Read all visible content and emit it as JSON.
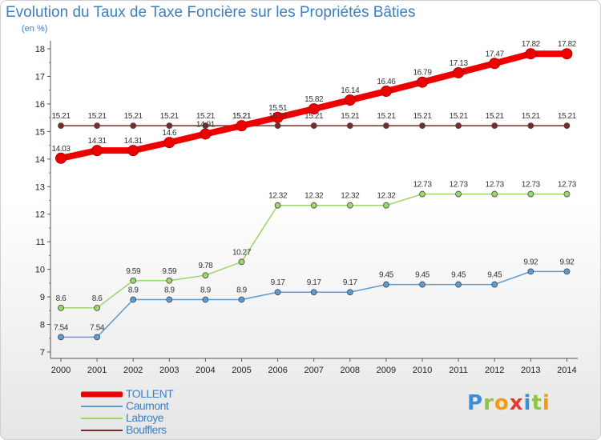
{
  "title": "Evolution du Taux de Taxe Foncière sur les Propriétés Bâties",
  "subtitle": "(en %)",
  "logo": {
    "text": "Proxiti",
    "letters": [
      {
        "ch": "P",
        "color": "#3a8fd6"
      },
      {
        "ch": "r",
        "color": "#8dc63f"
      },
      {
        "ch": "o",
        "color": "#f39c12"
      },
      {
        "ch": "x",
        "color": "#e23b2e"
      },
      {
        "ch": "i",
        "color": "#3a8fd6"
      },
      {
        "ch": "t",
        "color": "#8dc63f"
      },
      {
        "ch": "i",
        "color": "#f39c12"
      }
    ]
  },
  "chart_data": {
    "type": "line",
    "title": "Evolution du Taux de Taxe Foncière sur les Propriétés Bâties",
    "ylabel": "(en %)",
    "xlabel": "",
    "categories": [
      "2000",
      "2001",
      "2002",
      "2003",
      "2004",
      "2005",
      "2006",
      "2007",
      "2008",
      "2009",
      "2010",
      "2011",
      "2012",
      "2013",
      "2014"
    ],
    "ylim": [
      7,
      18
    ],
    "yticks": [
      7,
      8,
      9,
      10,
      11,
      12,
      13,
      14,
      15,
      16,
      17,
      18
    ],
    "grid": false,
    "legend_position": "bottom-left",
    "series": [
      {
        "name": "Boufflers",
        "color": "#7a2a2a",
        "values": [
          15.21,
          15.21,
          15.21,
          15.21,
          15.21,
          15.21,
          15.21,
          15.21,
          15.21,
          15.21,
          15.21,
          15.21,
          15.21,
          15.21,
          15.21
        ]
      },
      {
        "name": "Caumont",
        "color": "#5d9bd3",
        "values": [
          7.54,
          7.54,
          8.9,
          8.9,
          8.9,
          8.9,
          9.17,
          9.17,
          9.17,
          9.45,
          9.45,
          9.45,
          9.45,
          9.92,
          9.92
        ]
      },
      {
        "name": "Labroye",
        "color": "#9bd66a",
        "values": [
          8.6,
          8.6,
          9.59,
          9.59,
          9.78,
          10.27,
          12.32,
          12.32,
          12.32,
          12.32,
          12.73,
          12.73,
          12.73,
          12.73,
          12.73
        ]
      },
      {
        "name": "TOLLENT",
        "color": "#ee0000",
        "values": [
          14.03,
          14.31,
          14.31,
          14.6,
          14.91,
          15.21,
          15.51,
          15.82,
          16.14,
          16.46,
          16.79,
          17.13,
          17.47,
          17.82,
          17.82
        ]
      }
    ],
    "legend": [
      "TOLLENT",
      "Caumont",
      "Labroye",
      "Boufflers"
    ]
  }
}
